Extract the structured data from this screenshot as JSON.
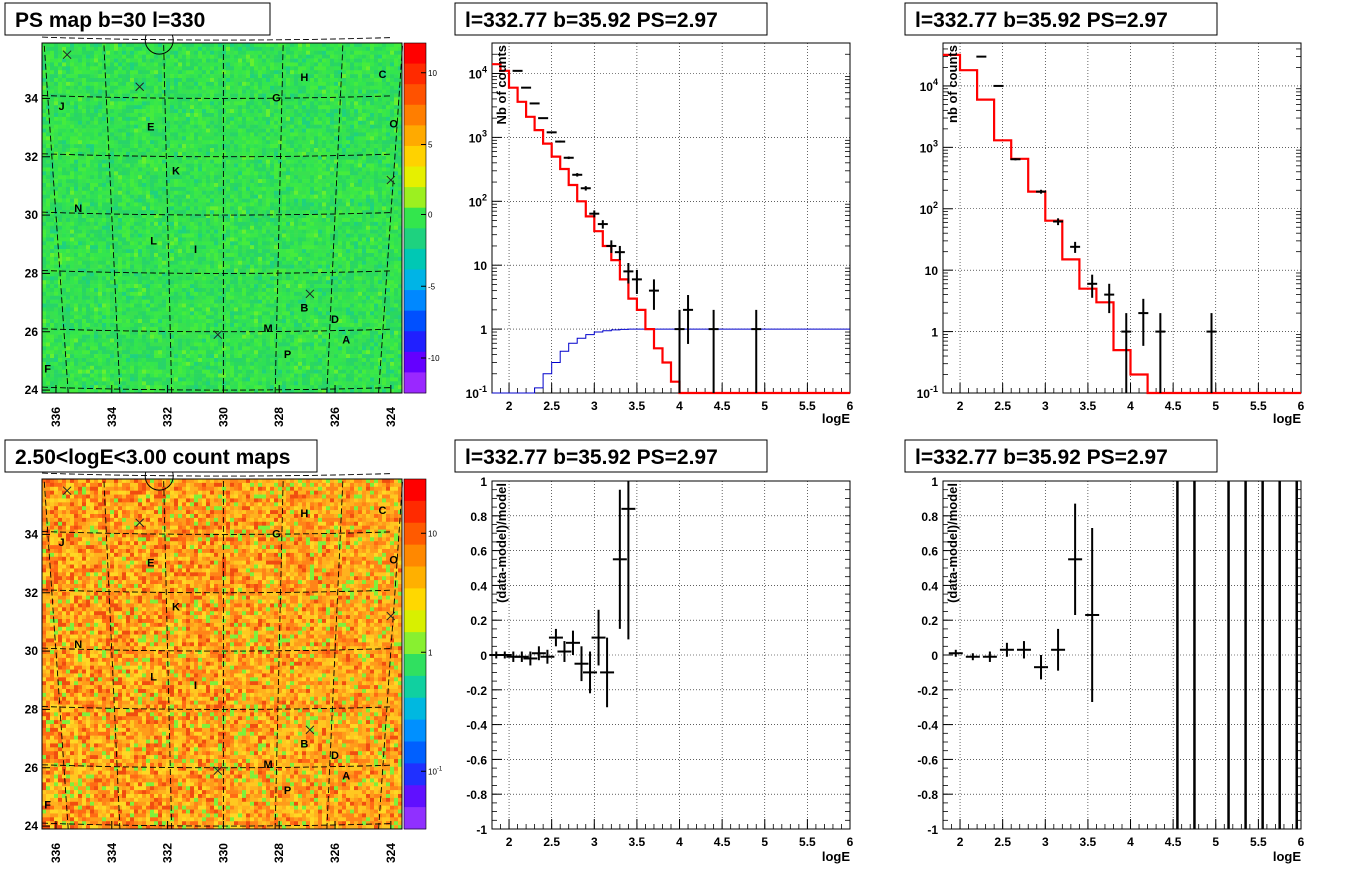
{
  "chart_data": [
    {
      "type": "heatmap",
      "title": "PS map b=30 l=330",
      "x_ticks": [
        "336",
        "334",
        "332",
        "330",
        "328",
        "326",
        "324"
      ],
      "y_ticks": [
        "24",
        "26",
        "28",
        "30",
        "32",
        "34"
      ],
      "xlim": [
        336.5,
        323.6
      ],
      "ylim": [
        23.9,
        35.9
      ],
      "colorbar": {
        "ticks": [
          "10",
          "5",
          "0",
          "-5",
          "-10"
        ],
        "range": [
          -12,
          12
        ]
      },
      "sources": [
        {
          "label": "H",
          "l": 327.1,
          "b": 34.6
        },
        {
          "label": "C",
          "l": 324.3,
          "b": 34.7
        },
        {
          "label": "J",
          "l": 335.8,
          "b": 33.6
        },
        {
          "label": "G",
          "l": 328.1,
          "b": 33.9
        },
        {
          "label": "O",
          "l": 323.9,
          "b": 33.0
        },
        {
          "label": "E",
          "l": 332.6,
          "b": 32.9
        },
        {
          "label": "K",
          "l": 331.7,
          "b": 31.4
        },
        {
          "label": "N",
          "l": 335.2,
          "b": 30.1
        },
        {
          "label": "L",
          "l": 332.5,
          "b": 29.0
        },
        {
          "label": "I",
          "l": 331.0,
          "b": 28.7
        },
        {
          "label": "B",
          "l": 327.1,
          "b": 26.7
        },
        {
          "label": "D",
          "l": 326.0,
          "b": 26.3
        },
        {
          "label": "M",
          "l": 328.4,
          "b": 26.0
        },
        {
          "label": "A",
          "l": 325.6,
          "b": 25.6
        },
        {
          "label": "P",
          "l": 327.7,
          "b": 25.1
        },
        {
          "label": "F",
          "l": 336.3,
          "b": 24.6
        }
      ]
    },
    {
      "type": "line",
      "title": "l=332.77 b=35.92 PS=2.97",
      "xlabel": "logE",
      "ylabel": "Nb of counts",
      "xlim": [
        1.8,
        6
      ],
      "ylim": [
        0.1,
        30000
      ],
      "y_log": true,
      "x_ticks": [
        "2",
        "2.5",
        "3",
        "3.5",
        "4",
        "4.5",
        "5",
        "5.5",
        "6"
      ],
      "y_ticks": [
        "10^-1",
        "1",
        "10",
        "10^2",
        "10^3",
        "10^4"
      ],
      "data_points": {
        "x": [
          2.1,
          2.2,
          2.3,
          2.4,
          2.5,
          2.6,
          2.7,
          2.8,
          2.9,
          3.0,
          3.1,
          3.2,
          3.3,
          3.4,
          3.5,
          3.7,
          4.0,
          4.1,
          4.4,
          4.9
        ],
        "y": [
          11000,
          6000,
          3400,
          2000,
          1200,
          860,
          480,
          260,
          160,
          64,
          44,
          20,
          16,
          8,
          6,
          4,
          1,
          2,
          1,
          1
        ]
      },
      "model_red": {
        "edges": [
          1.8,
          1.9,
          2.0,
          2.1,
          2.2,
          2.3,
          2.4,
          2.5,
          2.6,
          2.7,
          2.8,
          2.9,
          3.0,
          3.1,
          3.2,
          3.3,
          3.4,
          3.5,
          3.6,
          3.7,
          3.8,
          3.9,
          4.0,
          4.1,
          6.0
        ],
        "values": [
          14000,
          11000,
          6000,
          3600,
          2100,
          1300,
          800,
          500,
          320,
          180,
          100,
          58,
          34,
          20,
          12,
          6,
          3,
          2,
          1,
          0.5,
          0.3,
          0.15,
          0.1,
          0.1
        ]
      },
      "model_blue": {
        "edges": [
          1.8,
          2.0,
          2.1,
          2.2,
          2.3,
          2.4,
          2.5,
          2.6,
          2.7,
          2.8,
          2.9,
          3.0,
          3.1,
          3.2,
          3.3,
          3.4,
          3.6,
          6.0
        ],
        "values": [
          0.1,
          0.1,
          0.1,
          0.1,
          0.12,
          0.2,
          0.3,
          0.45,
          0.6,
          0.72,
          0.82,
          0.9,
          0.94,
          0.97,
          0.99,
          1,
          1
        ]
      }
    },
    {
      "type": "line",
      "title": "l=332.77 b=35.92 PS=2.97",
      "xlabel": "logE",
      "ylabel": "nb of counts",
      "xlim": [
        1.8,
        6
      ],
      "ylim": [
        0.1,
        50000
      ],
      "y_log": true,
      "x_ticks": [
        "2",
        "2.5",
        "3",
        "3.5",
        "4",
        "4.5",
        "5",
        "5.5",
        "6"
      ],
      "y_ticks": [
        "10^-1",
        "1",
        "10",
        "10^2",
        "10^3",
        "10^4"
      ],
      "data_points": {
        "x": [
          2.25,
          2.45,
          2.65,
          2.95,
          3.15,
          3.35,
          3.55,
          3.75,
          3.95,
          4.15,
          4.35,
          4.95
        ],
        "y": [
          30000,
          10000,
          640,
          190,
          62,
          24,
          6,
          4,
          1,
          2,
          1,
          1
        ]
      },
      "model_red": {
        "edges": [
          1.8,
          2.0,
          2.2,
          2.4,
          2.6,
          2.8,
          3.0,
          3.2,
          3.4,
          3.6,
          3.8,
          4.0,
          4.2,
          4.4,
          6.0
        ],
        "values": [
          32000,
          18000,
          6000,
          1300,
          650,
          190,
          64,
          15,
          5,
          3,
          0.5,
          0.2,
          0.1,
          0.1
        ]
      }
    },
    {
      "type": "heatmap",
      "title": "2.50<logE<3.00 count maps",
      "x_ticks": [
        "336",
        "334",
        "332",
        "330",
        "328",
        "326",
        "324"
      ],
      "y_ticks": [
        "24",
        "26",
        "28",
        "30",
        "32",
        "34"
      ],
      "xlim": [
        336.5,
        323.6
      ],
      "ylim": [
        23.9,
        35.9
      ],
      "colorbar": {
        "ticks": [
          "10",
          "1",
          "10^-1"
        ],
        "log": true
      },
      "sources": [
        {
          "label": "H",
          "l": 327.1,
          "b": 34.6
        },
        {
          "label": "C",
          "l": 324.3,
          "b": 34.7
        },
        {
          "label": "J",
          "l": 335.8,
          "b": 33.6
        },
        {
          "label": "G",
          "l": 328.1,
          "b": 33.9
        },
        {
          "label": "O",
          "l": 323.9,
          "b": 33.0
        },
        {
          "label": "E",
          "l": 332.6,
          "b": 32.9
        },
        {
          "label": "K",
          "l": 331.7,
          "b": 31.4
        },
        {
          "label": "N",
          "l": 335.2,
          "b": 30.1
        },
        {
          "label": "L",
          "l": 332.5,
          "b": 29.0
        },
        {
          "label": "I",
          "l": 331.0,
          "b": 28.7
        },
        {
          "label": "B",
          "l": 327.1,
          "b": 26.7
        },
        {
          "label": "D",
          "l": 326.0,
          "b": 26.3
        },
        {
          "label": "M",
          "l": 328.4,
          "b": 26.0
        },
        {
          "label": "A",
          "l": 325.6,
          "b": 25.6
        },
        {
          "label": "P",
          "l": 327.7,
          "b": 25.1
        },
        {
          "label": "F",
          "l": 336.3,
          "b": 24.6
        }
      ]
    },
    {
      "type": "scatter",
      "title": "l=332.77 b=35.92 PS=2.97",
      "xlabel": "logE",
      "ylabel": "(data-model)/model",
      "xlim": [
        1.8,
        6
      ],
      "ylim": [
        -1,
        1
      ],
      "x_ticks": [
        "2",
        "2.5",
        "3",
        "3.5",
        "4",
        "4.5",
        "5",
        "5.5",
        "6"
      ],
      "y_ticks": [
        "-1",
        "-0.8",
        "-0.6",
        "-0.4",
        "-0.2",
        "0",
        "0.2",
        "0.4",
        "0.6",
        "0.8",
        "1"
      ],
      "points": [
        {
          "x": 1.85,
          "y": 0.0,
          "e": 0.02
        },
        {
          "x": 1.95,
          "y": 0.0,
          "e": 0.02
        },
        {
          "x": 2.05,
          "y": -0.01,
          "e": 0.03
        },
        {
          "x": 2.15,
          "y": -0.01,
          "e": 0.03
        },
        {
          "x": 2.25,
          "y": -0.02,
          "e": 0.04
        },
        {
          "x": 2.35,
          "y": 0.01,
          "e": 0.04
        },
        {
          "x": 2.45,
          "y": -0.01,
          "e": 0.04
        },
        {
          "x": 2.55,
          "y": 0.1,
          "e": 0.05
        },
        {
          "x": 2.65,
          "y": 0.02,
          "e": 0.06
        },
        {
          "x": 2.75,
          "y": 0.07,
          "e": 0.07
        },
        {
          "x": 2.85,
          "y": -0.05,
          "e": 0.1
        },
        {
          "x": 2.95,
          "y": -0.1,
          "e": 0.12
        },
        {
          "x": 3.05,
          "y": 0.1,
          "e": 0.16
        },
        {
          "x": 3.15,
          "y": -0.1,
          "e": 0.2
        },
        {
          "x": 3.3,
          "y": 0.55,
          "e": 0.4
        },
        {
          "x": 3.4,
          "y": 0.84,
          "e": 0.75
        }
      ]
    },
    {
      "type": "scatter",
      "title": "l=332.77 b=35.92 PS=2.97",
      "xlabel": "logE",
      "ylabel": "(data-model)/model",
      "xlim": [
        1.8,
        6
      ],
      "ylim": [
        -1,
        1
      ],
      "x_ticks": [
        "2",
        "2.5",
        "3",
        "3.5",
        "4",
        "4.5",
        "5",
        "5.5",
        "6"
      ],
      "y_ticks": [
        "-1",
        "-0.8",
        "-0.6",
        "-0.4",
        "-0.2",
        "0",
        "0.2",
        "0.4",
        "0.6",
        "0.8",
        "1"
      ],
      "points": [
        {
          "x": 1.95,
          "y": 0.01,
          "e": 0.02
        },
        {
          "x": 2.15,
          "y": -0.01,
          "e": 0.02
        },
        {
          "x": 2.35,
          "y": -0.01,
          "e": 0.03
        },
        {
          "x": 2.55,
          "y": 0.03,
          "e": 0.04
        },
        {
          "x": 2.75,
          "y": 0.03,
          "e": 0.05
        },
        {
          "x": 2.95,
          "y": -0.07,
          "e": 0.07
        },
        {
          "x": 3.15,
          "y": 0.03,
          "e": 0.12
        },
        {
          "x": 3.35,
          "y": 0.55,
          "e": 0.32
        },
        {
          "x": 3.55,
          "y": 0.23,
          "e": 0.5
        }
      ],
      "vertical_lines_x": [
        4.55,
        4.75,
        5.15,
        5.35,
        5.55,
        5.75,
        5.95
      ]
    }
  ]
}
